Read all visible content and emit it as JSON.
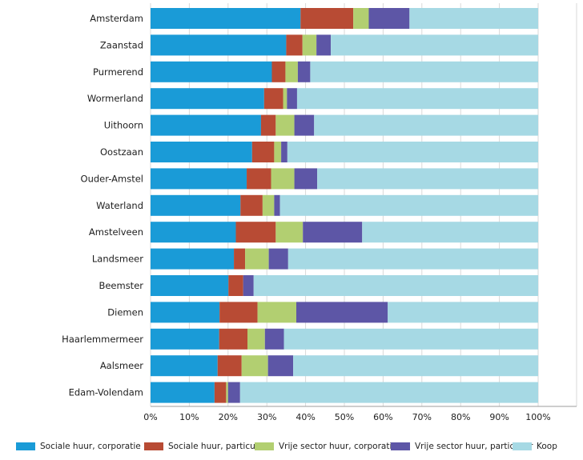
{
  "chart_data": {
    "type": "bar",
    "orientation": "horizontal",
    "stacked": true,
    "categories": [
      "Amsterdam",
      "Zaanstad",
      "Purmerend",
      "Wormerland",
      "Uithoorn",
      "Oostzaan",
      "Ouder-Amstel",
      "Waterland",
      "Amstelveen",
      "Landsmeer",
      "Beemster",
      "Diemen",
      "Haarlemmermeer",
      "Aalsmeer",
      "Edam-Volendam"
    ],
    "series": [
      {
        "name": "Sociale huur, corporatie",
        "color": "#1a9bd7",
        "values": [
          38.7,
          35.0,
          31.3,
          29.3,
          28.5,
          26.2,
          24.8,
          23.2,
          22.0,
          21.5,
          20.1,
          17.8,
          17.7,
          17.3,
          16.5
        ]
      },
      {
        "name": "Sociale huur, particulier",
        "color": "#b84b34",
        "values": [
          13.6,
          4.2,
          3.5,
          4.9,
          3.8,
          5.7,
          6.3,
          5.7,
          10.3,
          2.9,
          3.8,
          9.8,
          7.3,
          6.2,
          3.0
        ]
      },
      {
        "name": "Vrije sector huur, corporatie",
        "color": "#b2cf71",
        "values": [
          4.0,
          3.6,
          3.2,
          1.0,
          4.8,
          1.8,
          6.0,
          3.0,
          7.0,
          6.1,
          0.0,
          10.0,
          4.5,
          6.8,
          0.5
        ]
      },
      {
        "name": "Vrije sector huur, particulier",
        "color": "#5d56a6",
        "values": [
          10.5,
          3.7,
          3.2,
          2.6,
          5.1,
          1.6,
          5.9,
          1.5,
          15.3,
          5.0,
          2.7,
          23.6,
          4.9,
          6.5,
          3.1
        ]
      },
      {
        "name": "Koop",
        "color": "#a6d9e4",
        "values": [
          33.2,
          53.5,
          58.8,
          62.2,
          57.8,
          64.7,
          57.0,
          66.6,
          45.4,
          64.5,
          73.4,
          38.8,
          65.6,
          63.2,
          76.9
        ]
      }
    ],
    "xlim": [
      0,
      100
    ],
    "x_ticks": [
      "0%",
      "10%",
      "20%",
      "30%",
      "40%",
      "50%",
      "60%",
      "70%",
      "80%",
      "90%",
      "100%"
    ],
    "grid": true,
    "legend_position": "bottom"
  }
}
